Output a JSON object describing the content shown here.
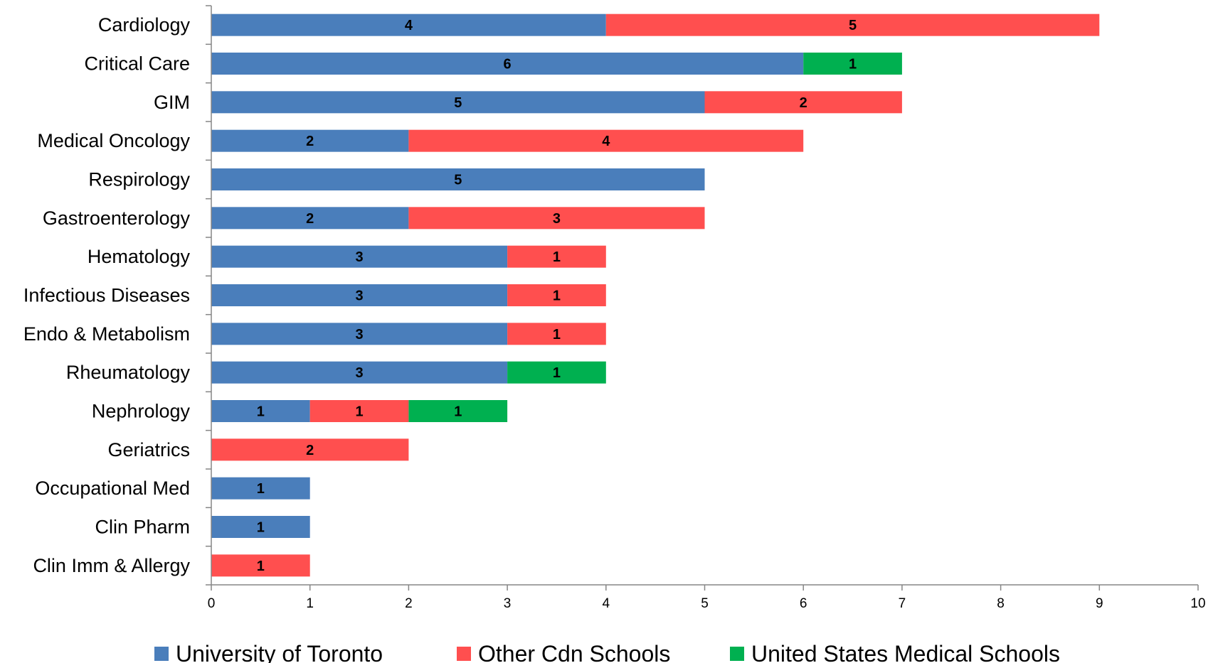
{
  "chart_data": {
    "type": "bar",
    "orientation": "horizontal",
    "stacked": true,
    "title": "",
    "xlabel": "",
    "ylabel": "",
    "xlim": [
      0,
      10
    ],
    "xticks": [
      0,
      1,
      2,
      3,
      4,
      5,
      6,
      7,
      8,
      9,
      10
    ],
    "grid": false,
    "legend_position": "bottom",
    "categories": [
      "Cardiology",
      "Critical Care",
      "GIM",
      "Medical Oncology",
      "Respirology",
      "Gastroenterology",
      "Hematology",
      "Infectious Diseases",
      "Endo & Metabolism",
      "Rheumatology",
      "Nephrology",
      "Geriatrics",
      "Occupational Med",
      "Clin Pharm",
      "Clin Imm & Allergy"
    ],
    "series": [
      {
        "name": "University of Toronto",
        "color": "#4a7ebb",
        "values": [
          4,
          6,
          5,
          2,
          5,
          2,
          3,
          3,
          3,
          3,
          1,
          0,
          1,
          1,
          0
        ]
      },
      {
        "name": "Other Cdn Schools",
        "color": "#ff4f4f",
        "values": [
          5,
          0,
          2,
          4,
          0,
          3,
          1,
          1,
          1,
          0,
          1,
          2,
          0,
          0,
          1
        ]
      },
      {
        "name": "United States Medical Schools",
        "color": "#00b050",
        "values": [
          0,
          1,
          0,
          0,
          0,
          0,
          0,
          0,
          0,
          1,
          1,
          0,
          0,
          0,
          0
        ]
      }
    ]
  }
}
